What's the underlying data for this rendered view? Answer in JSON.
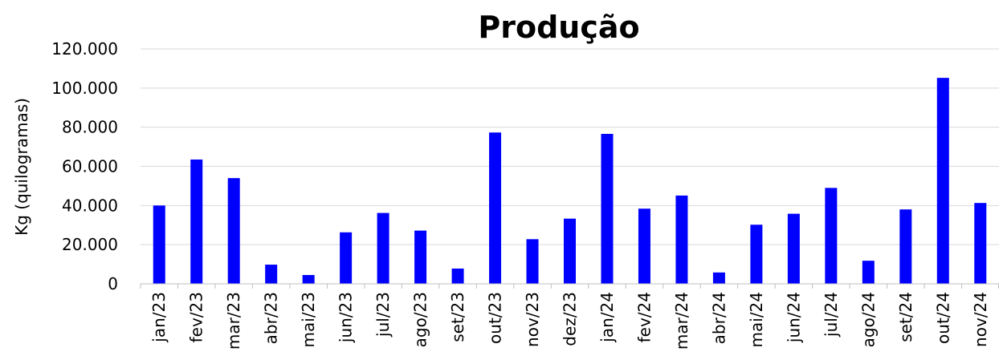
{
  "chart_data": {
    "type": "bar",
    "title": "Produção",
    "xlabel": "",
    "ylabel": "Kg (quilogramas)",
    "ylim": [
      0,
      120000
    ],
    "yticks": [
      "0",
      "20.000",
      "40.000",
      "60.000",
      "80.000",
      "100.000",
      "120.000"
    ],
    "grid": true,
    "legend": "none",
    "bar_color": "#0000ff",
    "categories": [
      "jan/23",
      "fev/23",
      "mar/23",
      "abr/23",
      "mai/23",
      "jun/23",
      "jul/23",
      "ago/23",
      "set/23",
      "out/23",
      "nov/23",
      "dez/23",
      "jan/24",
      "fev/24",
      "mar/24",
      "abr/24",
      "mai/24",
      "jun/24",
      "jul/24",
      "ago/24",
      "set/24",
      "out/24",
      "nov/24"
    ],
    "values": [
      40000,
      63500,
      54000,
      9800,
      4500,
      26300,
      36200,
      27200,
      7800,
      77300,
      22800,
      33300,
      76600,
      38400,
      45100,
      5800,
      30200,
      35800,
      49000,
      11800,
      38000,
      105200,
      41300
    ]
  }
}
